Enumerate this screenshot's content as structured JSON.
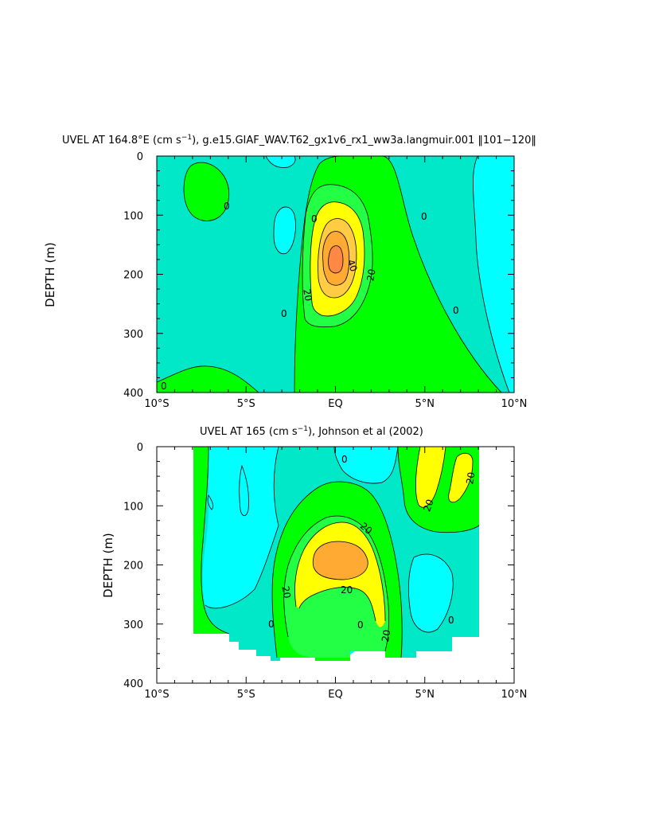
{
  "chart_data": [
    {
      "type": "heatmap",
      "title_main": "UVEL AT 164.8°E (cm s",
      "title_sup": "−1",
      "title_rest": "), g.e15.GIAF_WAV.T62_gx1v6_rx1_ww3a.langmuir.001 ‖101−120‖",
      "ylabel": "DEPTH (m)",
      "xlim": [
        -10,
        10
      ],
      "ylim": [
        400,
        0
      ],
      "x_ticks": [
        -10,
        -5,
        0,
        5,
        10
      ],
      "x_tick_labels": [
        "10°S",
        "5°S",
        "EQ",
        "5°N",
        "10°N"
      ],
      "y_ticks": [
        0,
        100,
        200,
        300,
        400
      ],
      "y_tick_labels": [
        "0",
        "100",
        "200",
        "300",
        "400"
      ],
      "contour_levels": [
        -10,
        0,
        10,
        20,
        30,
        40,
        50
      ],
      "contour_labels": [
        "0",
        "0",
        "0",
        "0",
        "0",
        "0",
        "20",
        "40",
        "20"
      ],
      "core": {
        "lon": 0,
        "depth": 175,
        "max_cm_s": 50
      }
    },
    {
      "type": "heatmap",
      "title_main": "UVEL AT 165 (cm s",
      "title_sup": "−1",
      "title_rest": "), Johnson et al (2002)",
      "ylabel": "DEPTH (m)",
      "xlim": [
        -10,
        10
      ],
      "ylim": [
        400,
        0
      ],
      "data_lon_range": [
        -8,
        8
      ],
      "x_ticks": [
        -10,
        -5,
        0,
        5,
        10
      ],
      "x_tick_labels": [
        "10°S",
        "5°S",
        "EQ",
        "5°N",
        "10°N"
      ],
      "y_ticks": [
        0,
        100,
        200,
        300,
        400
      ],
      "y_tick_labels": [
        "0",
        "100",
        "200",
        "300",
        "400"
      ],
      "contour_levels": [
        -10,
        0,
        10,
        20,
        30,
        40
      ],
      "contour_labels": [
        "20",
        "20",
        "0",
        "20",
        "20",
        "20",
        "0",
        "0",
        "0",
        "20"
      ],
      "core": {
        "lon": -0.2,
        "depth": 185,
        "max_cm_s": 40
      }
    }
  ],
  "colors": {
    "neg_cyan": "#00ffff",
    "neutral": "#00e8c8",
    "green_light": "#22ff44",
    "green": "#00ff00",
    "yellow": "#ffff00",
    "orange_light": "#ffcc44",
    "orange": "#ffaa33",
    "orange_dark": "#ff8844"
  }
}
